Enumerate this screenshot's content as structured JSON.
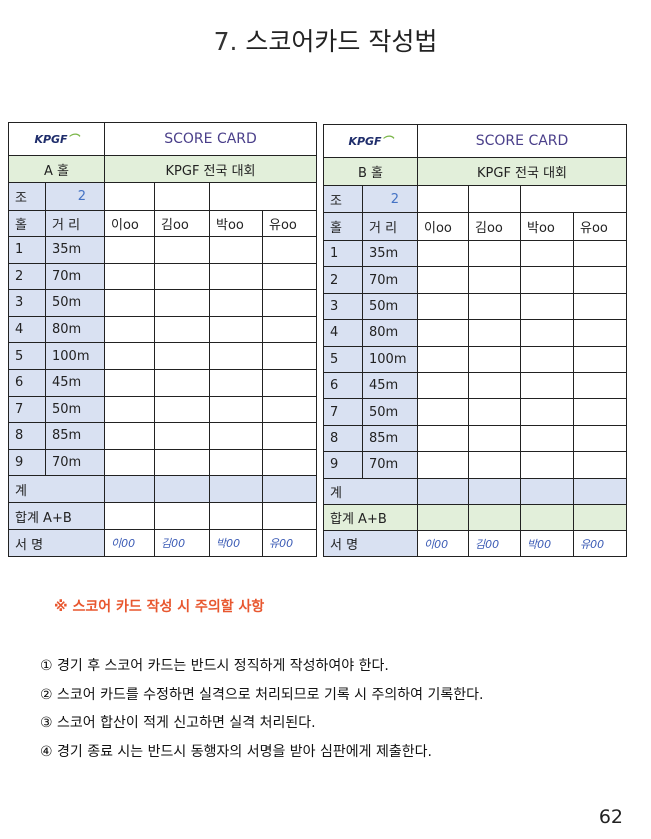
{
  "title": {
    "number": "7.",
    "text": "스코어카드 작성법"
  },
  "cards": [
    {
      "logo": "KPGF",
      "header": "SCORE CARD",
      "hole_label": "A  홀",
      "event": "KPGF 전국 대회",
      "group_label": "조",
      "group": "2",
      "col_hole": "홀",
      "col_dist": "거 리",
      "players": [
        "이oo",
        "김oo",
        "박oo",
        "유oo"
      ],
      "holes": [
        {
          "n": "1",
          "d": "35m"
        },
        {
          "n": "2",
          "d": "70m"
        },
        {
          "n": "3",
          "d": "50m"
        },
        {
          "n": "4",
          "d": "80m"
        },
        {
          "n": "5",
          "d": "100m"
        },
        {
          "n": "6",
          "d": "45m"
        },
        {
          "n": "7",
          "d": "50m"
        },
        {
          "n": "8",
          "d": "85m"
        },
        {
          "n": "9",
          "d": "70m"
        }
      ],
      "subtotal": "계",
      "total": "합계 A+B",
      "sign": "서 명",
      "signatures": [
        "이00",
        "김00",
        "박00",
        "유00"
      ]
    },
    {
      "logo": "KPGF",
      "header": "SCORE CARD",
      "hole_label": "B  홀",
      "event": "KPGF 전국  대회",
      "group_label": "조",
      "group": "2",
      "col_hole": "홀",
      "col_dist": "거 리",
      "players": [
        "이oo",
        "김oo",
        "박oo",
        "유oo"
      ],
      "holes": [
        {
          "n": "1",
          "d": "35m"
        },
        {
          "n": "2",
          "d": "70m"
        },
        {
          "n": "3",
          "d": "50m"
        },
        {
          "n": "4",
          "d": "80m"
        },
        {
          "n": "5",
          "d": "100m"
        },
        {
          "n": "6",
          "d": "45m"
        },
        {
          "n": "7",
          "d": "50m"
        },
        {
          "n": "8",
          "d": "85m"
        },
        {
          "n": "9",
          "d": "70m"
        }
      ],
      "subtotal": "계",
      "total": "합계 A+B",
      "sign": "서 명",
      "signatures": [
        "이00",
        "김00",
        "박00",
        "유00"
      ]
    }
  ],
  "warning": "※  스코어 카드 작성 시 주의할 사항",
  "notes": [
    "① 경기 후 스코어 카드는  반드시 정직하게 작성하여야 한다.",
    "② 스코어 카드를 수정하면 실격으로 처리되므로 기록 시 주의하여 기록한다.",
    "③ 스코어 합산이 적게 신고하면  실격 처리된다.",
    "④ 경기 종료 시는 반드시 동행자의 서명을 받아 심판에게 제출한다."
  ],
  "page_number": "62",
  "colors": {
    "blue_cell": "#d9e1f2",
    "green_cell": "#e2efda",
    "warning": "#e8572f"
  }
}
